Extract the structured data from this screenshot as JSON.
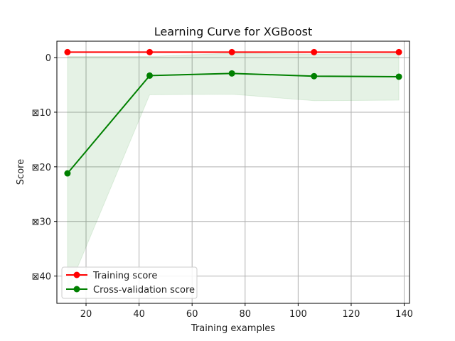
{
  "chart_data": {
    "type": "line",
    "title": "Learning Curve for XGBoost",
    "xlabel": "Training examples",
    "ylabel": "Score",
    "xlim": [
      9,
      142
    ],
    "ylim": [
      -45,
      3
    ],
    "x_ticks": [
      20,
      40,
      60,
      80,
      100,
      120,
      140
    ],
    "y_ticks": [
      0,
      -10,
      -20,
      -30,
      -40
    ],
    "y_tick_labels": [
      "0",
      "⊠10",
      "⊠20",
      "⊠30",
      "⊠40"
    ],
    "grid": true,
    "legend_position": "lower-left",
    "x": [
      13,
      44,
      75,
      106,
      138
    ],
    "series": [
      {
        "name": "Training score",
        "color": "#ff0000",
        "marker": "circle",
        "values": [
          1.0,
          1.0,
          1.0,
          1.0,
          1.0
        ],
        "band_lower": [
          1.0,
          1.0,
          1.0,
          1.0,
          1.0
        ],
        "band_upper": [
          1.0,
          1.0,
          1.0,
          1.0,
          1.0
        ],
        "band_color": "#ff0000"
      },
      {
        "name": "Cross-validation score",
        "color": "#008000",
        "marker": "circle",
        "values": [
          -21.2,
          -3.3,
          -2.9,
          -3.4,
          -3.5
        ],
        "band_lower": [
          -42.8,
          -6.8,
          -6.7,
          -7.9,
          -7.8
        ],
        "band_upper": [
          0.2,
          0.2,
          0.8,
          0.6,
          0.7
        ],
        "band_color": "#008000"
      }
    ]
  }
}
